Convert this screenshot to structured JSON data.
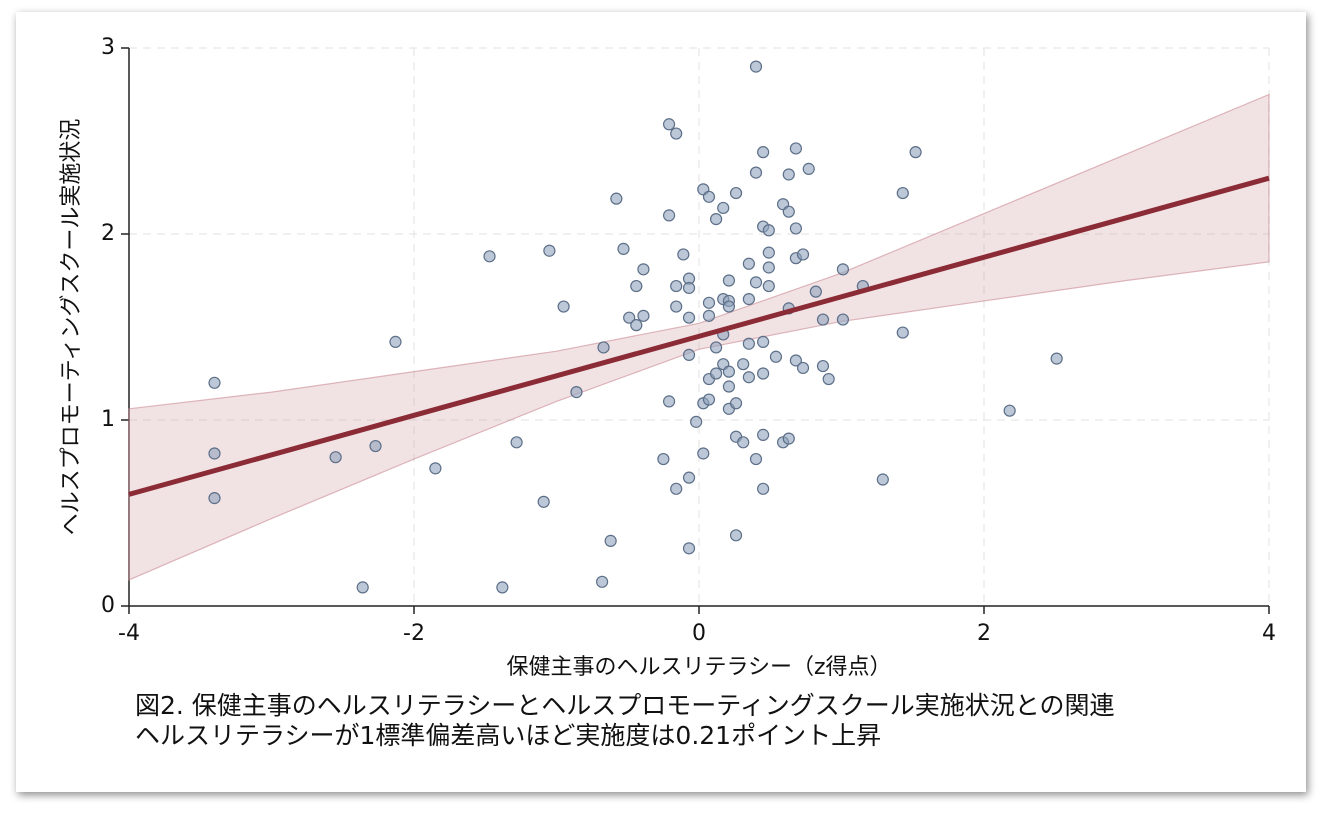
{
  "chart_data": {
    "type": "scatter",
    "y_label": "ヘルスプロモーティングスクール実施状況",
    "x_label": "保健主事のヘルスリテラシー（z得点）",
    "caption": [
      "図2.  保健主事のヘルスリテラシーとヘルスプロモーティングスクール実施状況との関連",
      "ヘルスリテラシーが1標準偏差高いほど実施度は0.21ポイント上昇"
    ],
    "xlim": [
      -4,
      4
    ],
    "xticks": [
      -4,
      -2,
      0,
      2,
      4
    ],
    "ylim": [
      0,
      3
    ],
    "yticks": [
      0,
      1,
      2,
      3
    ],
    "grid": true,
    "color": "#8fa3bd",
    "x": [
      -3.4,
      -3.4,
      -3.4,
      -2.55,
      -2.27,
      -2.13,
      -2.36,
      -1.85,
      -1.47,
      -1.38,
      -1.28,
      -1.09,
      -1.05,
      -0.95,
      -0.86,
      -0.67,
      -0.68,
      -0.62,
      -0.58,
      -0.53,
      -0.49,
      -0.44,
      -0.44,
      -0.39,
      -0.39,
      -0.25,
      -0.21,
      -0.21,
      -0.21,
      -0.16,
      -0.16,
      -0.16,
      -0.16,
      -0.11,
      -0.07,
      -0.07,
      -0.07,
      -0.07,
      -0.07,
      -0.07,
      -0.02,
      0.03,
      0.03,
      0.03,
      0.07,
      0.07,
      0.07,
      0.07,
      0.07,
      0.12,
      0.12,
      0.12,
      0.17,
      0.17,
      0.17,
      0.17,
      0.21,
      0.21,
      0.21,
      0.21,
      0.21,
      0.21,
      0.26,
      0.26,
      0.26,
      0.26,
      0.31,
      0.31,
      0.35,
      0.35,
      0.35,
      0.35,
      0.4,
      0.4,
      0.4,
      0.4,
      0.45,
      0.45,
      0.45,
      0.45,
      0.45,
      0.45,
      0.49,
      0.49,
      0.49,
      0.49,
      0.54,
      0.59,
      0.59,
      0.63,
      0.63,
      0.63,
      0.63,
      0.68,
      0.68,
      0.68,
      0.68,
      0.73,
      0.73,
      0.77,
      0.82,
      0.87,
      0.87,
      0.91,
      1.01,
      1.01,
      1.15,
      1.29,
      1.43,
      1.43,
      1.52,
      2.18,
      2.51
    ],
    "values": [
      1.2,
      0.82,
      0.58,
      0.8,
      0.86,
      1.42,
      0.1,
      0.74,
      1.88,
      0.1,
      0.88,
      0.56,
      1.91,
      1.61,
      1.15,
      1.39,
      0.13,
      0.35,
      2.19,
      1.92,
      1.55,
      1.72,
      1.51,
      1.81,
      1.56,
      0.79,
      2.59,
      2.1,
      1.1,
      2.54,
      1.72,
      1.61,
      0.63,
      1.89,
      1.76,
      1.71,
      1.55,
      1.35,
      0.69,
      0.31,
      0.99,
      2.24,
      1.09,
      0.82,
      2.2,
      1.63,
      1.56,
      1.22,
      1.11,
      2.08,
      1.39,
      1.25,
      2.14,
      1.65,
      1.46,
      1.3,
      1.75,
      1.64,
      1.61,
      1.26,
      1.18,
      1.06,
      2.22,
      1.09,
      0.91,
      0.38,
      1.3,
      0.88,
      1.84,
      1.65,
      1.41,
      1.23,
      2.9,
      2.33,
      1.74,
      0.79,
      2.44,
      2.04,
      1.42,
      1.25,
      0.92,
      0.63,
      2.02,
      1.9,
      1.82,
      1.72,
      1.34,
      2.16,
      0.88,
      2.32,
      2.12,
      1.6,
      0.9,
      2.46,
      2.03,
      1.87,
      1.32,
      1.89,
      1.28,
      2.35,
      1.69,
      1.54,
      1.29,
      1.22,
      1.81,
      1.54,
      1.72,
      0.68,
      2.22,
      1.47,
      2.44,
      1.05,
      1.33
    ],
    "fit": {
      "color": "#8b2b36",
      "x": [
        -4,
        4
      ],
      "values": [
        0.6,
        2.3
      ]
    },
    "ci": {
      "color": "#c98a93",
      "x": [
        -4,
        -3,
        -2,
        -1,
        0,
        1,
        2,
        3,
        4
      ],
      "lower": [
        0.14,
        0.47,
        0.79,
        1.1,
        1.38,
        1.53,
        1.64,
        1.75,
        1.85
      ],
      "upper": [
        1.06,
        1.15,
        1.26,
        1.37,
        1.52,
        1.79,
        2.11,
        2.43,
        2.75
      ]
    }
  }
}
